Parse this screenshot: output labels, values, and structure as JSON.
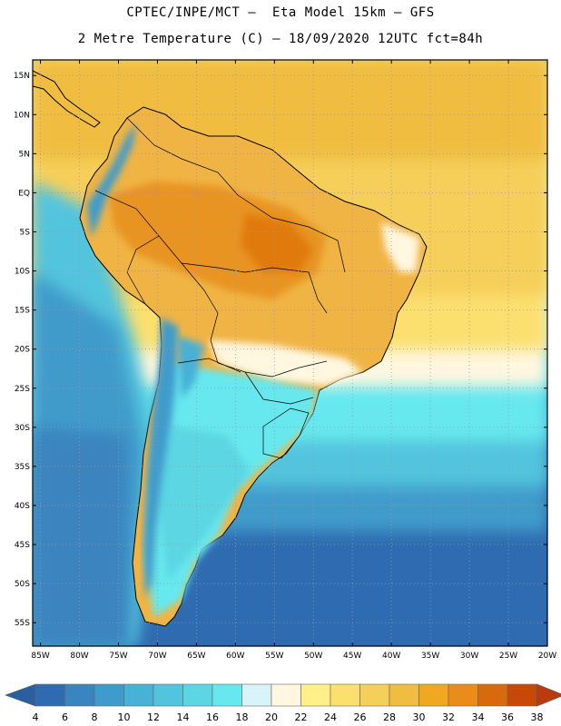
{
  "title": {
    "line1": "CPTEC/INPE/MCT –  Eta Model 15km – GFS",
    "line2": "2 Metre Temperature (C) – 18/09/2020 12UTC fct=84h"
  },
  "map": {
    "lon_range": [
      -86,
      -20
    ],
    "lat_range": [
      -58,
      17
    ],
    "lat_ticks": [
      "15N",
      "10N",
      "5N",
      "EQ",
      "5S",
      "10S",
      "15S",
      "20S",
      "25S",
      "30S",
      "35S",
      "40S",
      "45S",
      "50S",
      "55S"
    ],
    "lon_ticks": [
      "85W",
      "80W",
      "75W",
      "70W",
      "65W",
      "60W",
      "55W",
      "50W",
      "45W",
      "40W",
      "35W",
      "30W",
      "25W",
      "20W"
    ],
    "lat_values": [
      15,
      10,
      5,
      0,
      -5,
      -10,
      -15,
      -20,
      -25,
      -30,
      -35,
      -40,
      -45,
      -50,
      -55
    ],
    "lon_values": [
      -85,
      -80,
      -75,
      -70,
      -65,
      -60,
      -55,
      -50,
      -45,
      -40,
      -35,
      -30,
      -25,
      -20
    ],
    "grid": "dotted"
  },
  "colorbar": {
    "labels": [
      "4",
      "6",
      "8",
      "10",
      "12",
      "14",
      "16",
      "18",
      "20",
      "22",
      "24",
      "26",
      "28",
      "30",
      "32",
      "34",
      "36",
      "38"
    ],
    "colors": [
      "#2f6bb0",
      "#3a84c0",
      "#3f9bcb",
      "#47b1d6",
      "#52c4dd",
      "#5cd6e3",
      "#66e8ee",
      "#d9f4f8",
      "#fff7e0",
      "#fff08a",
      "#fbe070",
      "#f5cf5a",
      "#f0bd40",
      "#f0a820",
      "#e88d18",
      "#d86a0c",
      "#c84808"
    ],
    "low_color": "#2a5fa0",
    "high_color": "#b83c10"
  }
}
